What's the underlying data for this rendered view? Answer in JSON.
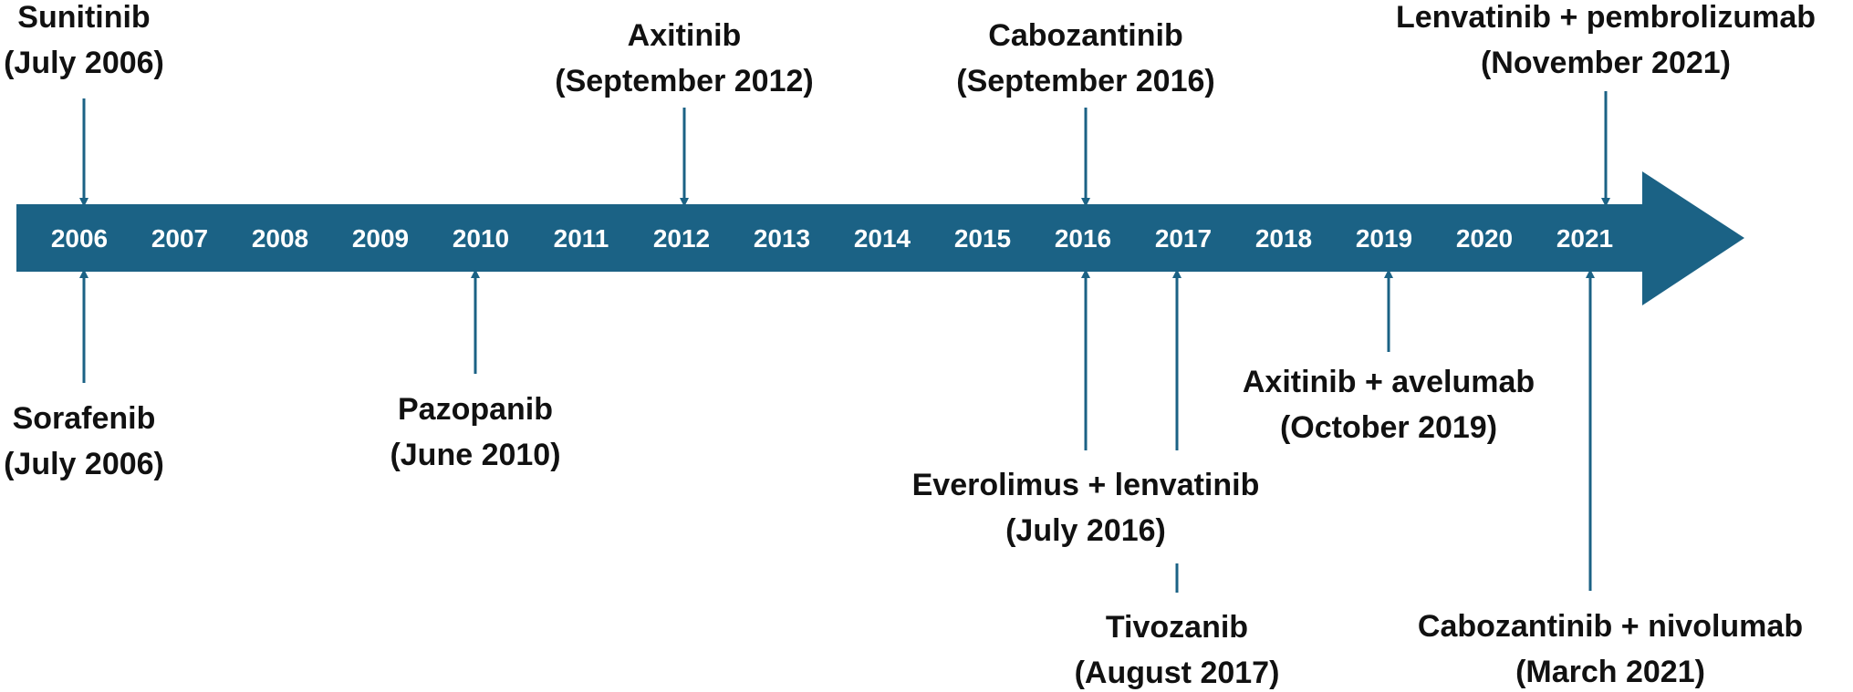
{
  "colors": {
    "bar": "#1b6285",
    "connector": "#1b6285",
    "text": "#111111",
    "year_text": "#ffffff"
  },
  "years": [
    "2006",
    "2007",
    "2008",
    "2009",
    "2010",
    "2011",
    "2012",
    "2013",
    "2014",
    "2015",
    "2016",
    "2017",
    "2018",
    "2019",
    "2020",
    "2021"
  ],
  "events_above": [
    {
      "drug": "Sunitinib",
      "date": "(July 2006)",
      "year": 2006,
      "month": 7
    },
    {
      "drug": "Axitinib",
      "date": "(September 2012)",
      "year": 2012,
      "month": 9
    },
    {
      "drug": "Cabozantinib",
      "date": "(September 2016)",
      "year": 2016,
      "month": 9
    },
    {
      "drug": "Lenvatinib + pembrolizumab",
      "date": "(November 2021)",
      "year": 2021,
      "month": 11
    }
  ],
  "events_below": [
    {
      "drug": "Sorafenib",
      "date": "(July 2006)",
      "year": 2006,
      "month": 7
    },
    {
      "drug": "Pazopanib",
      "date": "(June 2010)",
      "year": 2010,
      "month": 6
    },
    {
      "drug": "Everolimus + lenvatinib",
      "date": "(July 2016)",
      "year": 2016,
      "month": 7
    },
    {
      "drug": "Tivozanib",
      "date": "(August 2017)",
      "year": 2017,
      "month": 8
    },
    {
      "drug": "Axitinib + avelumab",
      "date": "(October 2019)",
      "year": 2019,
      "month": 10
    },
    {
      "drug": "Cabozantinib + nivolumab",
      "date": "(March 2021)",
      "year": 2021,
      "month": 3
    }
  ]
}
